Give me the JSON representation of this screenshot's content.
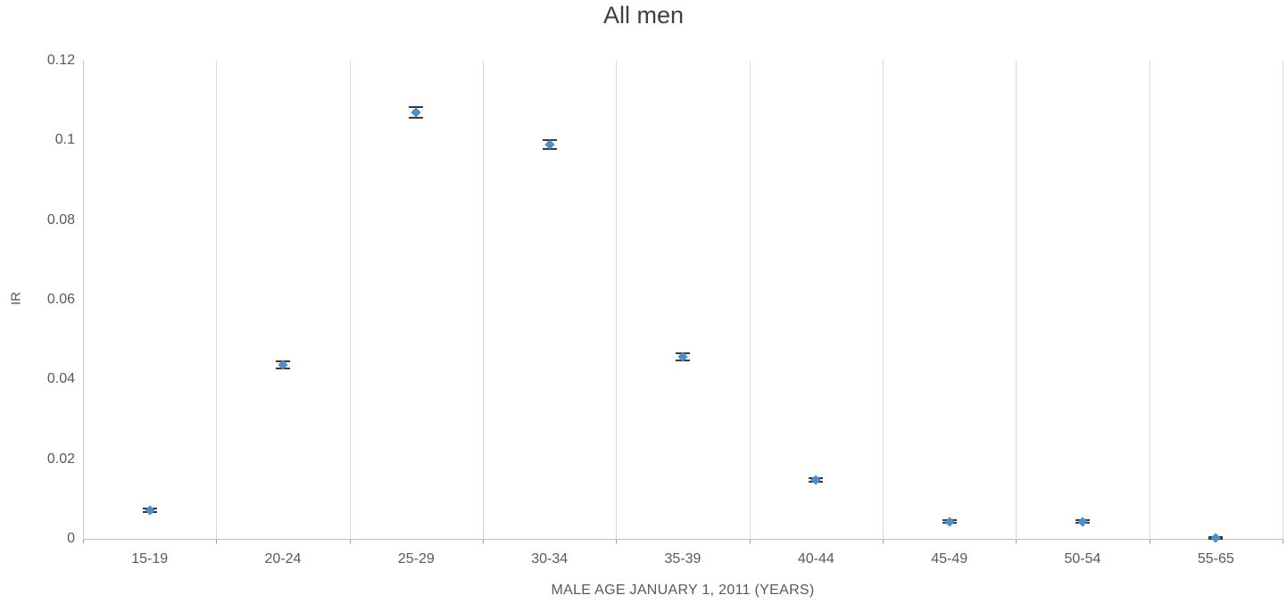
{
  "title": "All men",
  "colors": {
    "marker": "#4e8ecb",
    "error_bar": "#3b3b3b",
    "gridline": "#d9d9d9",
    "axis_line": "#bfbfbf",
    "text": "#595959",
    "title_text": "#404040",
    "background": "#ffffff"
  },
  "chart_data": {
    "type": "scatter",
    "title": "All men",
    "xlabel": "MALE AGE JANUARY 1, 2011 (YEARS)",
    "ylabel": "IR",
    "categories": [
      "15-19",
      "20-24",
      "25-29",
      "30-34",
      "35-39",
      "40-44",
      "45-49",
      "50-54",
      "55-65"
    ],
    "values": [
      0.0072,
      0.0437,
      0.107,
      0.099,
      0.0457,
      0.0148,
      0.0043,
      0.0043,
      0.0003
    ],
    "errors": [
      0.0004,
      0.0009,
      0.0013,
      0.0011,
      0.0009,
      0.0004,
      0.0003,
      0.0003,
      0.0002
    ],
    "ylim": [
      0,
      0.12
    ],
    "yticks": [
      0,
      0.02,
      0.04,
      0.06,
      0.08,
      0.1,
      0.12
    ],
    "ytick_labels": [
      "0",
      "0.02",
      "0.04",
      "0.06",
      "0.08",
      "0.1",
      "0.12"
    ],
    "grid": "vertical-only",
    "legend": "none",
    "marker_style": "diamond-with-error-bars"
  }
}
